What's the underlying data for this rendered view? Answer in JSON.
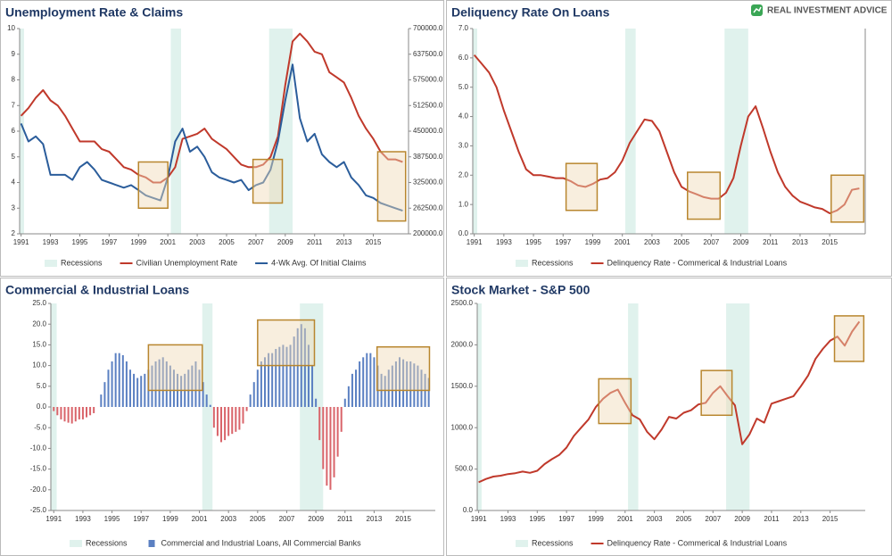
{
  "brand": "REAL INVESTMENT ADVICE",
  "chart_data": [
    {
      "type": "line",
      "title": "Unemployment Rate & Claims",
      "x": [
        1991,
        1991.5,
        1992,
        1992.5,
        1993,
        1993.5,
        1994,
        1994.5,
        1995,
        1995.5,
        1996,
        1996.5,
        1997,
        1997.5,
        1998,
        1998.5,
        1999,
        1999.5,
        2000,
        2000.5,
        2001,
        2001.5,
        2002,
        2002.5,
        2003,
        2003.5,
        2004,
        2004.5,
        2005,
        2005.5,
        2006,
        2006.5,
        2007,
        2007.5,
        2008,
        2008.5,
        2009,
        2009.5,
        2010,
        2010.5,
        2011,
        2011.5,
        2012,
        2012.5,
        2013,
        2013.5,
        2014,
        2014.5,
        2015,
        2015.5,
        2016,
        2016.5,
        2017
      ],
      "xlim": [
        1990.9,
        2017.4
      ],
      "xticks": [
        1991,
        1993,
        1995,
        1997,
        1999,
        2001,
        2003,
        2005,
        2007,
        2009,
        2011,
        2013,
        2015
      ],
      "ylim": [
        2,
        10
      ],
      "yticks": [
        2,
        3,
        4,
        5,
        6,
        7,
        8,
        9,
        10
      ],
      "y2lim": [
        200000,
        700000
      ],
      "y2ticks": [
        {
          "value": 200000,
          "label": "200000.0"
        },
        {
          "value": 262500,
          "label": "262500.0"
        },
        {
          "value": 325000,
          "label": "325000.0"
        },
        {
          "value": 387500,
          "label": "387500.0"
        },
        {
          "value": 450000,
          "label": "450000.0"
        },
        {
          "value": 512500,
          "label": "512500.0"
        },
        {
          "value": 575000,
          "label": "575000.0"
        },
        {
          "value": 637500,
          "label": "637500.0"
        },
        {
          "value": 700000,
          "label": "700000.0"
        }
      ],
      "grid": false,
      "recessions": {
        "name": "Recessions",
        "color": "#e0f2ed",
        "ranges": [
          [
            1990.6,
            1991.2
          ],
          [
            2001.2,
            2001.9
          ],
          [
            2007.9,
            2009.5
          ]
        ]
      },
      "highlight_color": "#b8862e",
      "highlights": [
        {
          "x": [
            1999.0,
            2001.0
          ],
          "y": [
            3.0,
            4.8
          ]
        },
        {
          "x": [
            2006.8,
            2008.8
          ],
          "y": [
            3.2,
            4.9
          ]
        },
        {
          "x": [
            2015.3,
            2017.2
          ],
          "y": [
            2.5,
            5.2
          ]
        }
      ],
      "series": [
        {
          "name": "Civilian Unemployment Rate",
          "color": "#c0392b",
          "values": [
            6.6,
            6.9,
            7.3,
            7.6,
            7.2,
            7.0,
            6.6,
            6.1,
            5.6,
            5.6,
            5.6,
            5.3,
            5.2,
            4.9,
            4.6,
            4.5,
            4.3,
            4.2,
            4.0,
            4.0,
            4.2,
            4.6,
            5.7,
            5.8,
            5.9,
            6.1,
            5.7,
            5.5,
            5.3,
            5.0,
            4.7,
            4.6,
            4.6,
            4.7,
            5.0,
            5.8,
            7.8,
            9.5,
            9.8,
            9.5,
            9.1,
            9.0,
            8.3,
            8.1,
            7.9,
            7.3,
            6.6,
            6.1,
            5.7,
            5.2,
            4.9,
            4.9,
            4.8
          ]
        },
        {
          "name": "4-Wk Avg. Of Initial Claims",
          "color": "#2b5d9b",
          "axis": "y2",
          "values": [
            468750,
            425000,
            437500,
            418750,
            343750,
            343750,
            343750,
            331250,
            362500,
            375000,
            356250,
            331250,
            325000,
            318750,
            312500,
            318750,
            306250,
            293750,
            287500,
            281250,
            337500,
            425000,
            456250,
            400000,
            412500,
            387500,
            350000,
            337500,
            331250,
            325000,
            331250,
            306250,
            318750,
            325000,
            356250,
            425000,
            525000,
            612500,
            481250,
            425000,
            443750,
            393750,
            375000,
            362500,
            375000,
            337500,
            318750,
            293750,
            287500,
            275000,
            268750,
            262500,
            256250
          ]
        }
      ]
    },
    {
      "type": "line",
      "title": "Deliquency Rate On Loans",
      "x": [
        1991,
        1991.5,
        1992,
        1992.5,
        1993,
        1993.5,
        1994,
        1994.5,
        1995,
        1995.5,
        1996,
        1996.5,
        1997,
        1997.5,
        1998,
        1998.5,
        1999,
        1999.5,
        2000,
        2000.5,
        2001,
        2001.5,
        2002,
        2002.5,
        2003,
        2003.5,
        2004,
        2004.5,
        2005,
        2005.5,
        2006,
        2006.5,
        2007,
        2007.5,
        2008,
        2008.5,
        2009,
        2009.5,
        2010,
        2010.5,
        2011,
        2011.5,
        2012,
        2012.5,
        2013,
        2013.5,
        2014,
        2014.5,
        2015,
        2015.5,
        2016,
        2016.5,
        2017
      ],
      "xlim": [
        1990.9,
        2017.4
      ],
      "xticks": [
        1991,
        1993,
        1995,
        1997,
        1999,
        2001,
        2003,
        2005,
        2007,
        2009,
        2011,
        2013,
        2015
      ],
      "ylim": [
        0,
        7
      ],
      "yticks": [
        {
          "value": 0,
          "label": "0.0"
        },
        {
          "value": 1,
          "label": "1.0"
        },
        {
          "value": 2,
          "label": "2.0"
        },
        {
          "value": 3,
          "label": "3.0"
        },
        {
          "value": 4,
          "label": "4.0"
        },
        {
          "value": 5,
          "label": "5.0"
        },
        {
          "value": 6,
          "label": "6.0"
        },
        {
          "value": 7,
          "label": "7.0"
        }
      ],
      "grid": false,
      "recessions": {
        "name": "Recessions",
        "color": "#e0f2ed",
        "ranges": [
          [
            1990.6,
            1991.2
          ],
          [
            2001.2,
            2001.9
          ],
          [
            2007.9,
            2009.5
          ]
        ]
      },
      "highlight_color": "#b8862e",
      "highlights": [
        {
          "x": [
            1997.2,
            1999.3
          ],
          "y": [
            0.8,
            2.4
          ]
        },
        {
          "x": [
            2005.4,
            2007.6
          ],
          "y": [
            0.5,
            2.1
          ]
        },
        {
          "x": [
            2015.1,
            2017.3
          ],
          "y": [
            0.4,
            2.0
          ]
        }
      ],
      "series": [
        {
          "name": "Delinquency Rate - Commerical & Industrial Loans",
          "color": "#c0392b",
          "values": [
            6.1,
            5.8,
            5.5,
            5.0,
            4.2,
            3.5,
            2.8,
            2.2,
            2.0,
            2.0,
            1.95,
            1.9,
            1.9,
            1.8,
            1.65,
            1.6,
            1.7,
            1.85,
            1.9,
            2.1,
            2.5,
            3.1,
            3.5,
            3.9,
            3.85,
            3.5,
            2.8,
            2.1,
            1.6,
            1.45,
            1.35,
            1.25,
            1.2,
            1.2,
            1.4,
            1.9,
            3.0,
            4.0,
            4.35,
            3.6,
            2.8,
            2.1,
            1.6,
            1.3,
            1.1,
            1.0,
            0.9,
            0.85,
            0.7,
            0.8,
            1.0,
            1.5,
            1.55
          ]
        }
      ]
    },
    {
      "type": "bar",
      "title": "Commercial & Industrial Loans",
      "x": [
        1991,
        1991.25,
        1991.5,
        1991.75,
        1992,
        1992.25,
        1992.5,
        1992.75,
        1993,
        1993.25,
        1993.5,
        1993.75,
        1994,
        1994.25,
        1994.5,
        1994.75,
        1995,
        1995.25,
        1995.5,
        1995.75,
        1996,
        1996.25,
        1996.5,
        1996.75,
        1997,
        1997.25,
        1997.5,
        1997.75,
        1998,
        1998.25,
        1998.5,
        1998.75,
        1999,
        1999.25,
        1999.5,
        1999.75,
        2000,
        2000.25,
        2000.5,
        2000.75,
        2001,
        2001.25,
        2001.5,
        2001.75,
        2002,
        2002.25,
        2002.5,
        2002.75,
        2003,
        2003.25,
        2003.5,
        2003.75,
        2004,
        2004.25,
        2004.5,
        2004.75,
        2005,
        2005.25,
        2005.5,
        2005.75,
        2006,
        2006.25,
        2006.5,
        2006.75,
        2007,
        2007.25,
        2007.5,
        2007.75,
        2008,
        2008.25,
        2008.5,
        2008.75,
        2009,
        2009.25,
        2009.5,
        2009.75,
        2010,
        2010.25,
        2010.5,
        2010.75,
        2011,
        2011.25,
        2011.5,
        2011.75,
        2012,
        2012.25,
        2012.5,
        2012.75,
        2013,
        2013.25,
        2013.5,
        2013.75,
        2014,
        2014.25,
        2014.5,
        2014.75,
        2015,
        2015.25,
        2015.5,
        2015.75,
        2016,
        2016.25,
        2016.5,
        2016.75
      ],
      "xlim": [
        1990.8,
        2017.2
      ],
      "xticks": [
        1991,
        1993,
        1995,
        1997,
        1999,
        2001,
        2003,
        2005,
        2007,
        2009,
        2011,
        2013,
        2015
      ],
      "ylim": [
        -25,
        25
      ],
      "yticks": [
        {
          "value": -25,
          "label": "-25.0"
        },
        {
          "value": -20,
          "label": "-20.0"
        },
        {
          "value": -15,
          "label": "-15.0"
        },
        {
          "value": -10,
          "label": "-10.0"
        },
        {
          "value": -5,
          "label": "-5.0"
        },
        {
          "value": 0,
          "label": "0.0"
        },
        {
          "value": 5,
          "label": "5.0"
        },
        {
          "value": 10,
          "label": "10.0"
        },
        {
          "value": 15,
          "label": "15.0"
        },
        {
          "value": 20,
          "label": "20.0"
        },
        {
          "value": 25,
          "label": "25.0"
        }
      ],
      "grid": false,
      "recessions": {
        "name": "Recessions",
        "color": "#e0f2ed",
        "ranges": [
          [
            1990.6,
            1991.2
          ],
          [
            2001.2,
            2001.9
          ],
          [
            2007.9,
            2009.5
          ]
        ]
      },
      "highlight_color": "#b8862e",
      "highlights": [
        {
          "x": [
            1997.5,
            2001.2
          ],
          "y": [
            4,
            15
          ]
        },
        {
          "x": [
            2005.0,
            2008.9
          ],
          "y": [
            10,
            21
          ]
        },
        {
          "x": [
            2013.2,
            2016.8
          ],
          "y": [
            4,
            14.5
          ]
        }
      ],
      "negative_color": "#d9646a",
      "series": [
        {
          "name": "Commercial and Industrial Loans, All Commercial Banks",
          "color": "#5b80c2",
          "values": [
            -1,
            -2,
            -3,
            -3.5,
            -3.8,
            -4,
            -3.5,
            -3,
            -3,
            -2.5,
            -2,
            -1.5,
            0,
            3,
            6,
            9,
            11,
            13,
            13,
            12.5,
            11,
            9,
            8,
            7,
            7.5,
            8,
            9,
            10,
            11,
            11.5,
            12,
            11,
            10,
            9,
            8,
            7.5,
            8,
            9,
            10,
            11,
            9,
            6,
            3,
            0.5,
            -5,
            -7,
            -8.5,
            -8,
            -7,
            -6.5,
            -6,
            -5.5,
            -4,
            -1,
            3,
            6,
            9,
            11,
            12,
            13,
            13,
            14,
            14.5,
            15,
            14.5,
            15,
            17,
            19,
            20,
            19,
            15,
            10,
            2,
            -8,
            -15,
            -19,
            -20,
            -17,
            -12,
            -6,
            2,
            5,
            8,
            9,
            11,
            12,
            13,
            13,
            12,
            10,
            8,
            7.5,
            9,
            10,
            11,
            12,
            11.5,
            11,
            11,
            10.5,
            10,
            9,
            8,
            7
          ]
        }
      ]
    },
    {
      "type": "line",
      "title": "Stock Market - S&P 500",
      "x": [
        1991,
        1991.5,
        1992,
        1992.5,
        1993,
        1993.5,
        1994,
        1994.5,
        1995,
        1995.5,
        1996,
        1996.5,
        1997,
        1997.5,
        1998,
        1998.5,
        1999,
        1999.5,
        2000,
        2000.5,
        2001,
        2001.5,
        2002,
        2002.5,
        2003,
        2003.5,
        2004,
        2004.5,
        2005,
        2005.5,
        2006,
        2006.5,
        2007,
        2007.5,
        2008,
        2008.5,
        2009,
        2009.5,
        2010,
        2010.5,
        2011,
        2011.5,
        2012,
        2012.5,
        2013,
        2013.5,
        2014,
        2014.5,
        2015,
        2015.5,
        2016,
        2016.5,
        2017
      ],
      "xlim": [
        1990.9,
        2017.4
      ],
      "xticks": [
        1991,
        1993,
        1995,
        1997,
        1999,
        2001,
        2003,
        2005,
        2007,
        2009,
        2011,
        2013,
        2015
      ],
      "ylim": [
        0,
        2500
      ],
      "yticks": [
        {
          "value": 0,
          "label": "0.0"
        },
        {
          "value": 500,
          "label": "500.0"
        },
        {
          "value": 1000,
          "label": "1000.0"
        },
        {
          "value": 1500,
          "label": "1500.0"
        },
        {
          "value": 2000,
          "label": "2000.0"
        },
        {
          "value": 2500,
          "label": "2500.0"
        }
      ],
      "grid": false,
      "recessions": {
        "name": "Recessions",
        "color": "#e0f2ed",
        "ranges": [
          [
            1990.6,
            1991.2
          ],
          [
            2001.2,
            2001.9
          ],
          [
            2007.9,
            2009.5
          ]
        ]
      },
      "highlight_color": "#b8862e",
      "highlights": [
        {
          "x": [
            1999.2,
            2001.4
          ],
          "y": [
            1050,
            1590
          ]
        },
        {
          "x": [
            2006.2,
            2008.3
          ],
          "y": [
            1150,
            1690
          ]
        },
        {
          "x": [
            2015.3,
            2017.3
          ],
          "y": [
            1800,
            2350
          ]
        }
      ],
      "series": [
        {
          "name": "Delinquency Rate - Commerical & Industrial Loans",
          "color": "#c0392b",
          "values": [
            340,
            380,
            410,
            420,
            440,
            450,
            470,
            455,
            480,
            560,
            620,
            670,
            760,
            900,
            1000,
            1100,
            1250,
            1350,
            1420,
            1460,
            1300,
            1150,
            1100,
            950,
            860,
            980,
            1130,
            1110,
            1180,
            1210,
            1280,
            1300,
            1420,
            1500,
            1380,
            1270,
            800,
            920,
            1110,
            1060,
            1290,
            1320,
            1350,
            1380,
            1500,
            1630,
            1830,
            1950,
            2050,
            2100,
            1990,
            2160,
            2280
          ]
        }
      ]
    }
  ]
}
